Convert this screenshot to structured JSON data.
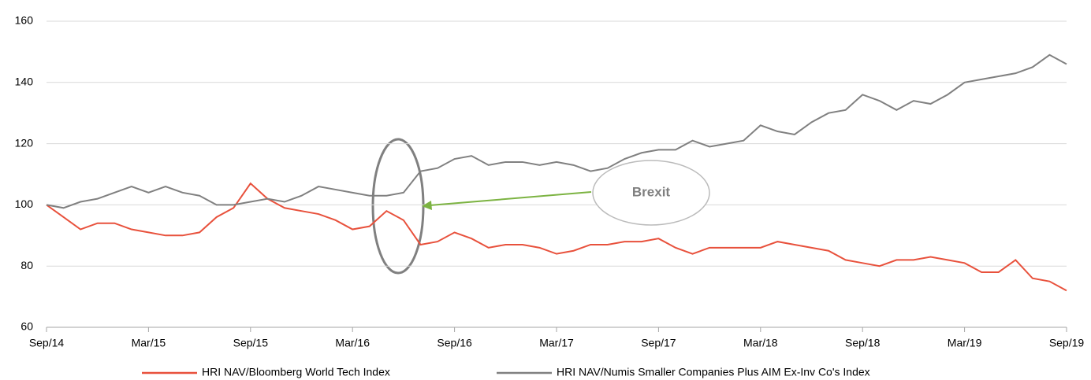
{
  "chart_data": {
    "type": "line",
    "categories": [
      "Sep/14",
      null,
      null,
      null,
      null,
      null,
      "Mar/15",
      null,
      null,
      null,
      null,
      null,
      "Sep/15",
      null,
      null,
      null,
      null,
      null,
      "Mar/16",
      null,
      null,
      null,
      null,
      null,
      "Sep/16",
      null,
      null,
      null,
      null,
      null,
      "Mar/17",
      null,
      null,
      null,
      null,
      null,
      "Sep/17",
      null,
      null,
      null,
      null,
      null,
      "Mar/18",
      null,
      null,
      null,
      null,
      null,
      "Sep/18",
      null,
      null,
      null,
      null,
      null,
      "Mar/19",
      null,
      null,
      null,
      null,
      null,
      "Sep/19"
    ],
    "series": [
      {
        "name": "HRI NAV/Bloomberg World Tech Index",
        "color": "#e8513c",
        "values": [
          100,
          96,
          92,
          94,
          94,
          92,
          91,
          90,
          90,
          91,
          96,
          99,
          107,
          102,
          99,
          98,
          97,
          95,
          92,
          93,
          98,
          95,
          87,
          88,
          91,
          89,
          86,
          87,
          87,
          86,
          84,
          85,
          87,
          87,
          88,
          88,
          89,
          86,
          84,
          86,
          86,
          86,
          86,
          88,
          87,
          86,
          85,
          82,
          81,
          80,
          82,
          82,
          83,
          82,
          81,
          78,
          78,
          82,
          76,
          75,
          72
        ]
      },
      {
        "name": "HRI NAV/Numis Smaller Companies Plus AIM Ex-Inv Co's Index",
        "color": "#808080",
        "values": [
          100,
          99,
          101,
          102,
          104,
          106,
          104,
          106,
          104,
          103,
          100,
          100,
          101,
          102,
          101,
          103,
          106,
          105,
          104,
          103,
          103,
          104,
          111,
          112,
          115,
          116,
          113,
          114,
          114,
          113,
          114,
          113,
          111,
          112,
          115,
          117,
          118,
          118,
          121,
          119,
          120,
          121,
          126,
          124,
          123,
          127,
          130,
          131,
          136,
          134,
          131,
          134,
          133,
          136,
          140,
          141,
          142,
          143,
          145,
          149,
          146
        ]
      }
    ],
    "ylim": [
      60,
      160
    ],
    "yticks": [
      60,
      80,
      100,
      120,
      140,
      160
    ],
    "grid": true,
    "annotations": [
      "Brexit"
    ]
  }
}
